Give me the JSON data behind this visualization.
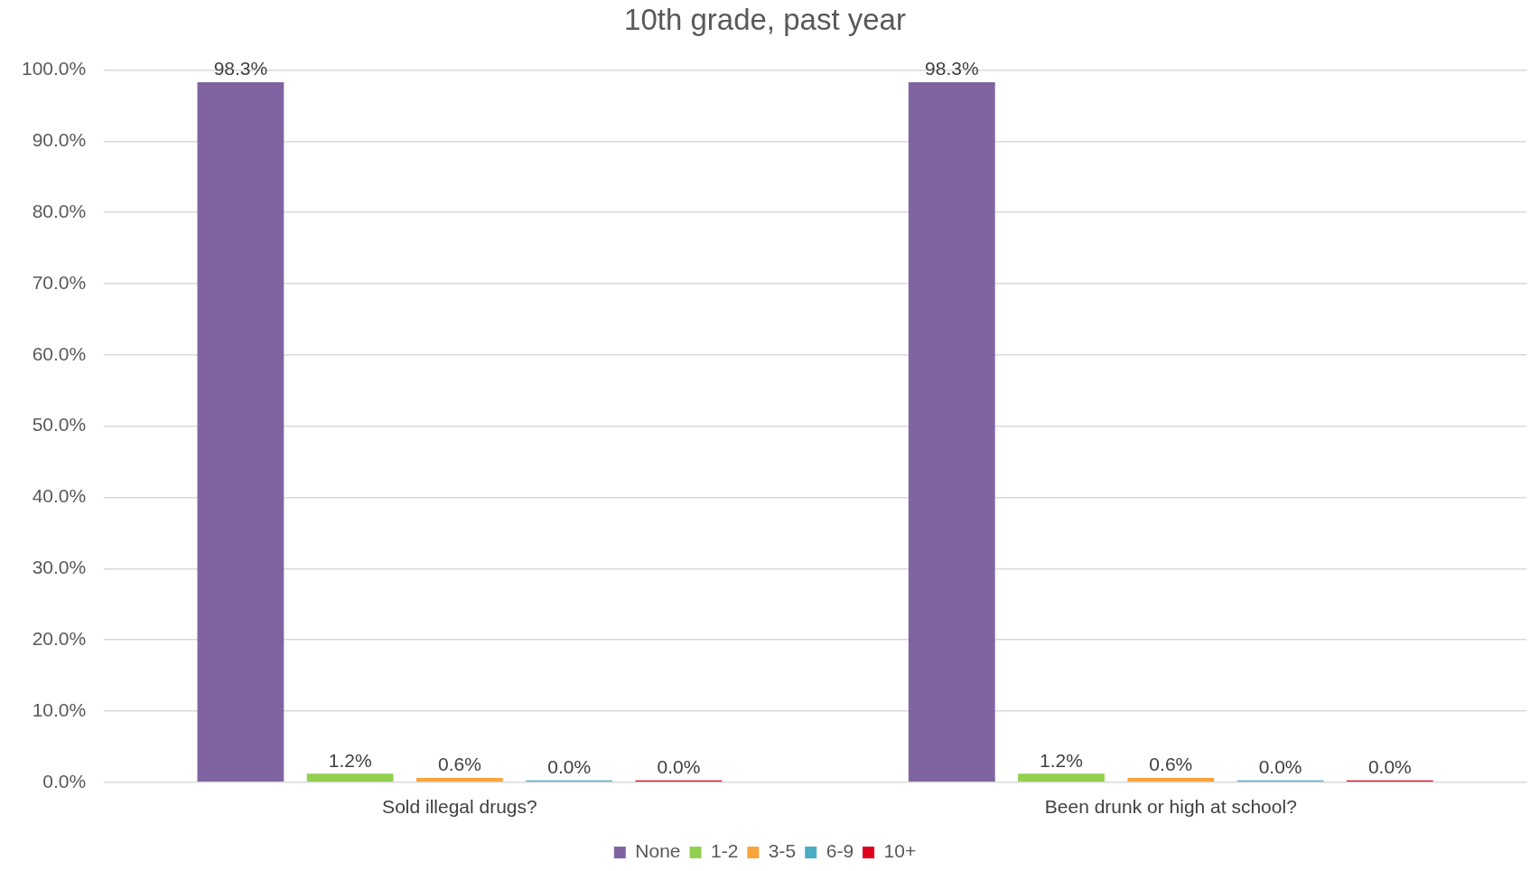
{
  "chart_data": {
    "type": "bar",
    "title": "10th grade, past year",
    "categories": [
      "Sold illegal drugs?",
      "Been drunk or high at school?"
    ],
    "series": [
      {
        "name": "None",
        "color": "#8064a2",
        "values": [
          98.3,
          98.3
        ],
        "value_labels": [
          "98.3%",
          "98.3%"
        ]
      },
      {
        "name": "1-2",
        "color": "#92d050",
        "values": [
          1.2,
          1.2
        ],
        "value_labels": [
          "1.2%",
          "1.2%"
        ]
      },
      {
        "name": "3-5",
        "color": "#f9a43a",
        "values": [
          0.6,
          0.6
        ],
        "value_labels": [
          "0.6%",
          "0.6%"
        ]
      },
      {
        "name": "6-9",
        "color": "#4bacc6",
        "values": [
          0,
          0
        ],
        "value_labels": [
          "0.0%",
          "0.0%"
        ]
      },
      {
        "name": "10+",
        "color": "#e0001b",
        "values": [
          0,
          0
        ],
        "value_labels": [
          "0.0%",
          "0.0%"
        ]
      }
    ],
    "ylim": [
      0,
      100
    ],
    "yticks": [
      {
        "value": 0,
        "label": "0.0%"
      },
      {
        "value": 10,
        "label": "10.0%"
      },
      {
        "value": 20,
        "label": "20.0%"
      },
      {
        "value": 30,
        "label": "30.0%"
      },
      {
        "value": 40,
        "label": "40.0%"
      },
      {
        "value": 50,
        "label": "50.0%"
      },
      {
        "value": 60,
        "label": "60.0%"
      },
      {
        "value": 70,
        "label": "70.0%"
      },
      {
        "value": 80,
        "label": "80.0%"
      },
      {
        "value": 90,
        "label": "90.0%"
      },
      {
        "value": 100,
        "label": "100.0%"
      }
    ],
    "grid": "y",
    "legend": "bottom"
  }
}
